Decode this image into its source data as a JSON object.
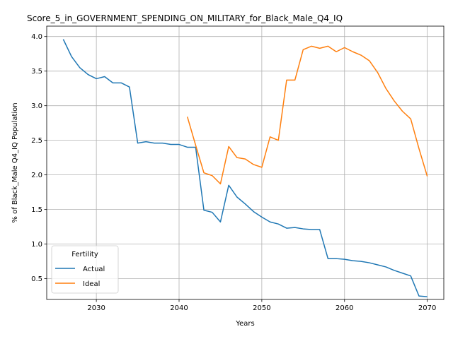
{
  "chart_data": {
    "type": "line",
    "title": "Score_5_in_GOVERNMENT_SPENDING_ON_MILITARY_for_Black_Male_Q4_IQ",
    "xlabel": "Years",
    "ylabel": "% of Black_Male Q4_IQ Population",
    "xlim": [
      2024,
      2072
    ],
    "ylim": [
      0.2,
      4.15
    ],
    "xticks": [
      2030,
      2040,
      2050,
      2060,
      2070
    ],
    "yticks": [
      0.5,
      1.0,
      1.5,
      2.0,
      2.5,
      3.0,
      3.5,
      4.0
    ],
    "grid": true,
    "legend": {
      "title": "Fertility",
      "placement": "lower-left"
    },
    "series": [
      {
        "name": "Actual",
        "color": "#1f77b4",
        "x": [
          2026,
          2027,
          2028,
          2029,
          2030,
          2031,
          2032,
          2033,
          2034,
          2035,
          2036,
          2037,
          2038,
          2039,
          2040,
          2041,
          2042,
          2043,
          2044,
          2045,
          2046,
          2047,
          2048,
          2049,
          2050,
          2051,
          2052,
          2053,
          2054,
          2055,
          2056,
          2057,
          2058,
          2059,
          2060,
          2061,
          2062,
          2063,
          2064,
          2065,
          2066,
          2067,
          2068,
          2069,
          2070
        ],
        "y": [
          3.96,
          3.71,
          3.55,
          3.45,
          3.39,
          3.42,
          3.33,
          3.33,
          3.27,
          2.46,
          2.48,
          2.46,
          2.46,
          2.44,
          2.44,
          2.4,
          2.4,
          1.49,
          1.46,
          1.32,
          1.85,
          1.68,
          1.58,
          1.47,
          1.39,
          1.32,
          1.29,
          1.23,
          1.24,
          1.22,
          1.21,
          1.21,
          0.79,
          0.79,
          0.78,
          0.76,
          0.75,
          0.73,
          0.7,
          0.67,
          0.62,
          0.58,
          0.54,
          0.25,
          0.24
        ]
      },
      {
        "name": "Ideal",
        "color": "#ff7f0e",
        "x": [
          2041,
          2042,
          2043,
          2044,
          2045,
          2046,
          2047,
          2048,
          2049,
          2050,
          2051,
          2052,
          2053,
          2054,
          2055,
          2056,
          2057,
          2058,
          2059,
          2060,
          2061,
          2062,
          2063,
          2064,
          2065,
          2066,
          2067,
          2068,
          2069,
          2070
        ],
        "y": [
          2.84,
          2.43,
          2.03,
          1.99,
          1.87,
          2.41,
          2.25,
          2.23,
          2.15,
          2.11,
          2.55,
          2.5,
          3.37,
          3.37,
          3.81,
          3.86,
          3.83,
          3.86,
          3.78,
          3.84,
          3.78,
          3.73,
          3.65,
          3.48,
          3.25,
          3.07,
          2.92,
          2.81,
          2.38,
          1.98
        ]
      }
    ]
  }
}
